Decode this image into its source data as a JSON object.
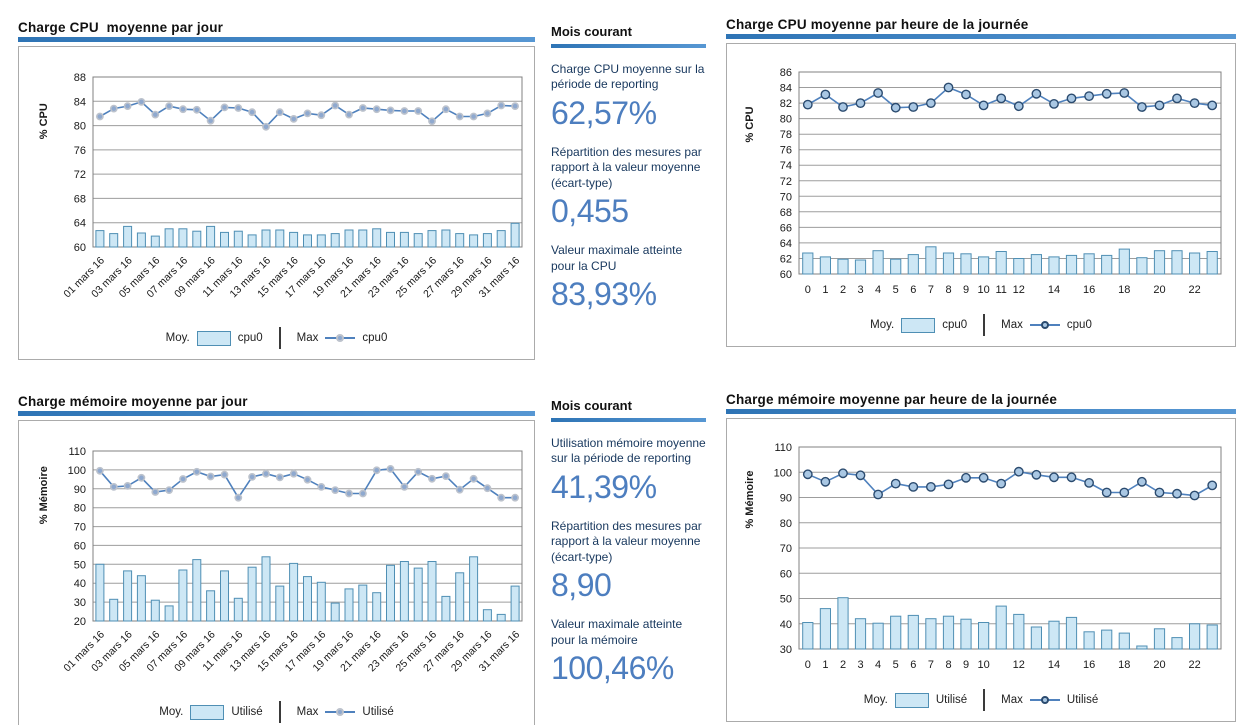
{
  "colors": {
    "accent_rule": "#2E74B5",
    "accent_rule_light": "#5797D3",
    "bar_fill": "#CDE7F5",
    "bar_stroke": "#4F8FB4",
    "line": "#4F81BD",
    "marker_dot_fill": "#8FA9CF",
    "marker_dot_ring": "#BCC2CC",
    "marker_ring_fill": "#A9C7E3",
    "marker_ring_stroke": "#2B4B6F",
    "stat_value": "#4D7EBF",
    "stat_label": "#17375D",
    "grid": "#9D9D9D",
    "plot_border": "#808080",
    "box_border": "#ABABAB"
  },
  "panels": [
    {
      "title": "Mois courant",
      "stats": [
        {
          "label": "Charge CPU moyenne sur la période de reporting",
          "value": "62,57%"
        },
        {
          "label": "Répartition des mesures par rapport à la valeur moyenne (écart-type)",
          "value": "0,455"
        },
        {
          "label": "Valeur maximale atteinte pour la CPU",
          "value": "83,93%"
        }
      ]
    },
    {
      "title": "Mois courant",
      "stats": [
        {
          "label": "Utilisation mémoire moyenne sur la période de reporting",
          "value": "41,39%"
        },
        {
          "label": "Répartition des mesures par rapport à la valeur moyenne (écart-type)",
          "value": "8,90"
        },
        {
          "label": "Valeur maximale atteinte pour la mémoire",
          "value": "100,46%"
        }
      ]
    }
  ],
  "chart_data": [
    {
      "type": "bar+line",
      "title": "Charge CPU  moyenne par jour",
      "ylabel": "% CPU",
      "ylim": [
        60,
        88
      ],
      "ystep": 4,
      "grid": true,
      "legend_position": "bottom",
      "rotate_labels": true,
      "marker": "dot",
      "categories": [
        "01 mars 16",
        "02 mars 16",
        "03 mars 16",
        "04 mars 16",
        "05 mars 16",
        "06 mars 16",
        "07 mars 16",
        "08 mars 16",
        "09 mars 16",
        "10 mars 16",
        "11 mars 16",
        "12 mars 16",
        "13 mars 16",
        "14 mars 16",
        "15 mars 16",
        "16 mars 16",
        "17 mars 16",
        "18 mars 16",
        "19 mars 16",
        "20 mars 16",
        "21 mars 16",
        "22 mars 16",
        "23 mars 16",
        "24 mars 16",
        "25 mars 16",
        "26 mars 16",
        "27 mars 16",
        "28 mars 16",
        "29 mars 16",
        "30 mars 16",
        "31 mars 16"
      ],
      "xticks": [
        0,
        2,
        4,
        6,
        8,
        10,
        12,
        14,
        16,
        18,
        20,
        22,
        24,
        26,
        28,
        30
      ],
      "series": [
        {
          "name": "cpu0",
          "role": "Moy.",
          "type": "bar",
          "values": [
            62.7,
            62.2,
            63.4,
            62.3,
            61.8,
            63.0,
            63.0,
            62.6,
            63.4,
            62.4,
            62.6,
            62.0,
            62.8,
            62.8,
            62.4,
            62.0,
            62.0,
            62.2,
            62.8,
            62.8,
            63.0,
            62.4,
            62.4,
            62.2,
            62.7,
            62.8,
            62.2,
            62.0,
            62.2,
            62.7,
            63.9
          ]
        },
        {
          "name": "cpu0",
          "role": "Max",
          "type": "line",
          "values": [
            81.5,
            82.8,
            83.2,
            83.9,
            81.8,
            83.2,
            82.7,
            82.6,
            80.8,
            83.0,
            82.9,
            82.2,
            79.8,
            82.2,
            81.1,
            82.0,
            81.7,
            83.3,
            81.8,
            82.9,
            82.7,
            82.5,
            82.4,
            82.4,
            80.7,
            82.7,
            81.5,
            81.5,
            82.0,
            83.3,
            83.2
          ]
        }
      ],
      "legend": {
        "bar_label": "Moy.",
        "bar_series": "cpu0",
        "line_label": "Max",
        "line_series": "cpu0"
      }
    },
    {
      "type": "bar+line",
      "title": "Charge CPU moyenne par heure de la journée",
      "ylabel": "% CPU",
      "ylim": [
        60,
        86
      ],
      "ystep": 2,
      "grid": true,
      "legend_position": "bottom",
      "rotate_labels": false,
      "marker": "ring",
      "categories": [
        "0",
        "1",
        "2",
        "3",
        "4",
        "5",
        "6",
        "7",
        "8",
        "9",
        "10",
        "11",
        "12",
        "13",
        "14",
        "15",
        "16",
        "17",
        "18",
        "19",
        "20",
        "21",
        "22",
        "23"
      ],
      "xticks": [
        0,
        1,
        2,
        3,
        4,
        5,
        6,
        7,
        8,
        9,
        10,
        11,
        12,
        14,
        16,
        18,
        20,
        22
      ],
      "series": [
        {
          "name": "cpu0",
          "role": "Moy.",
          "type": "bar",
          "values": [
            62.7,
            62.2,
            61.9,
            61.8,
            63.0,
            61.9,
            62.5,
            63.5,
            62.7,
            62.6,
            62.2,
            62.9,
            62.0,
            62.5,
            62.2,
            62.4,
            62.6,
            62.4,
            63.2,
            62.1,
            63.0,
            63.0,
            62.7,
            62.9
          ]
        },
        {
          "name": "cpu0",
          "role": "Max",
          "type": "line",
          "values": [
            81.8,
            83.1,
            81.5,
            82.0,
            83.3,
            81.4,
            81.5,
            82.0,
            84.0,
            83.1,
            81.7,
            82.6,
            81.6,
            83.2,
            81.9,
            82.6,
            82.9,
            83.2,
            83.3,
            81.5,
            81.7,
            82.6,
            82.0,
            81.7
          ]
        }
      ],
      "legend": {
        "bar_label": "Moy.",
        "bar_series": "cpu0",
        "line_label": "Max",
        "line_series": "cpu0"
      }
    },
    {
      "type": "bar+line",
      "title": "Charge mémoire moyenne par jour",
      "ylabel": "% Mémoire",
      "ylim": [
        20,
        110
      ],
      "ystep": 10,
      "grid": true,
      "legend_position": "bottom",
      "rotate_labels": true,
      "marker": "dot",
      "categories": [
        "01 mars 16",
        "02 mars 16",
        "03 mars 16",
        "04 mars 16",
        "05 mars 16",
        "06 mars 16",
        "07 mars 16",
        "08 mars 16",
        "09 mars 16",
        "10 mars 16",
        "11 mars 16",
        "12 mars 16",
        "13 mars 16",
        "14 mars 16",
        "15 mars 16",
        "16 mars 16",
        "17 mars 16",
        "18 mars 16",
        "19 mars 16",
        "20 mars 16",
        "21 mars 16",
        "22 mars 16",
        "23 mars 16",
        "24 mars 16",
        "25 mars 16",
        "26 mars 16",
        "27 mars 16",
        "28 mars 16",
        "29 mars 16",
        "30 mars 16",
        "31 mars 16"
      ],
      "xticks": [
        0,
        2,
        4,
        6,
        8,
        10,
        12,
        14,
        16,
        18,
        20,
        22,
        24,
        26,
        28,
        30
      ],
      "series": [
        {
          "name": "Utilisé",
          "role": "Moy.",
          "type": "bar",
          "values": [
            50.0,
            31.5,
            46.5,
            44.0,
            31.0,
            28.0,
            47.0,
            52.5,
            36.0,
            46.5,
            32.0,
            48.5,
            54.0,
            38.5,
            50.5,
            43.5,
            40.5,
            29.5,
            37.0,
            39.0,
            35.0,
            49.5,
            51.5,
            48.0,
            51.5,
            33.0,
            45.5,
            54.0,
            26.0,
            23.5,
            38.5
          ]
        },
        {
          "name": "Utilisé",
          "role": "Max",
          "type": "line",
          "values": [
            99.5,
            91.0,
            91.5,
            95.8,
            88.3,
            89.3,
            95.2,
            99.0,
            96.5,
            97.5,
            85.3,
            96.3,
            98.0,
            96.0,
            98.0,
            94.8,
            91.0,
            89.3,
            87.5,
            87.5,
            99.8,
            100.5,
            91.0,
            99.0,
            95.3,
            96.7,
            89.5,
            95.3,
            90.3,
            85.3,
            85.3
          ]
        }
      ],
      "legend": {
        "bar_label": "Moy.",
        "bar_series": "Utilisé",
        "line_label": "Max",
        "line_series": "Utilisé"
      }
    },
    {
      "type": "bar+line",
      "title": "Charge mémoire moyenne par heure de la journée",
      "ylabel": "% Mémoire",
      "ylim": [
        30,
        110
      ],
      "ystep": 10,
      "grid": true,
      "legend_position": "bottom",
      "rotate_labels": false,
      "marker": "ring",
      "categories": [
        "0",
        "1",
        "2",
        "3",
        "4",
        "5",
        "6",
        "7",
        "8",
        "9",
        "10",
        "11",
        "12",
        "13",
        "14",
        "15",
        "16",
        "17",
        "18",
        "19",
        "20",
        "21",
        "22",
        "23"
      ],
      "xticks": [
        0,
        1,
        2,
        3,
        4,
        5,
        6,
        7,
        8,
        9,
        10,
        12,
        14,
        16,
        18,
        20,
        22
      ],
      "series": [
        {
          "name": "Utilisé",
          "role": "Moy.",
          "type": "bar",
          "values": [
            40.5,
            46.0,
            50.3,
            42.0,
            40.2,
            43.0,
            43.3,
            42.0,
            43.0,
            41.8,
            40.5,
            47.0,
            43.7,
            38.7,
            41.0,
            42.5,
            36.8,
            37.5,
            36.3,
            31.2,
            38.0,
            34.5,
            40.0,
            39.5
          ]
        },
        {
          "name": "Utilisé",
          "role": "Max",
          "type": "line",
          "values": [
            99.2,
            96.2,
            99.6,
            98.8,
            91.2,
            95.5,
            94.2,
            94.2,
            95.2,
            97.8,
            97.8,
            95.5,
            100.2,
            99.0,
            98.0,
            98.0,
            95.8,
            92.0,
            92.0,
            96.2,
            92.0,
            91.5,
            90.8,
            94.8
          ]
        }
      ],
      "legend": {
        "bar_label": "Moy.",
        "bar_series": "Utilisé",
        "line_label": "Max",
        "line_series": "Utilisé"
      }
    }
  ]
}
